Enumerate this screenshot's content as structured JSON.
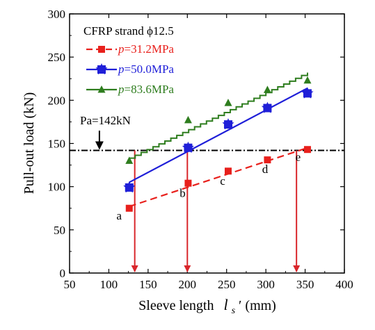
{
  "chart_data": {
    "type": "line",
    "xlabel": "Sleeve length",
    "xlabel_symbol": "l",
    "xlabel_subscript": "s",
    "xlabel_prime": "′",
    "xlabel_unit": "(mm)",
    "ylabel": "Pull-out load (kN)",
    "xlim": [
      50,
      400
    ],
    "ylim": [
      0,
      300
    ],
    "xticks": [
      50,
      100,
      150,
      200,
      250,
      300,
      350,
      400
    ],
    "yticks": [
      0,
      50,
      100,
      150,
      200,
      250,
      300
    ],
    "grid": false,
    "legend": {
      "placement": "top-left",
      "header": "CFRP strand  ϕ12.5",
      "entries": [
        {
          "symbol": "p",
          "text": "=31.2MPa",
          "color": "#e8201c"
        },
        {
          "symbol": "p",
          "text": "=50.0MPa",
          "color": "#1f1fd8"
        },
        {
          "symbol": "p",
          "text": "=83.6MPa",
          "color": "#2e7d1e"
        }
      ]
    },
    "series": [
      {
        "name": "p=31.2MPa",
        "color": "#e8201c",
        "marker": "square",
        "line_style": "dashed",
        "points": [
          [
            126,
            75
          ],
          [
            201,
            104
          ],
          [
            252,
            118
          ],
          [
            302,
            131
          ],
          [
            353,
            143
          ]
        ],
        "fit": [
          [
            126,
            77
          ],
          [
            353,
            145
          ]
        ]
      },
      {
        "name": "p=50.0MPa",
        "color": "#1f1fd8",
        "marker": "star",
        "line_style": "solid",
        "points": [
          [
            126,
            99
          ],
          [
            201,
            145
          ],
          [
            252,
            172
          ],
          [
            302,
            191
          ],
          [
            353,
            208
          ]
        ],
        "fit": [
          [
            126,
            105
          ],
          [
            353,
            214
          ]
        ]
      },
      {
        "name": "p=83.6MPa",
        "color": "#2e7d1e",
        "marker": "triangle",
        "line_style": "stepped",
        "points": [
          [
            126,
            130
          ],
          [
            201,
            177
          ],
          [
            252,
            197
          ],
          [
            302,
            212
          ],
          [
            353,
            223
          ]
        ],
        "fit": [
          [
            126,
            133
          ],
          [
            353,
            232
          ]
        ]
      }
    ],
    "reference_line": {
      "y": 142,
      "label": "Pa=142kN",
      "arrow_x": 88,
      "color": "#000000"
    },
    "vertical_arrows": {
      "color": "#d9262b",
      "x": [
        133,
        200,
        339
      ],
      "from_y": 142,
      "to_y": 0
    },
    "point_labels": [
      {
        "text": "a",
        "x": 113,
        "y": 62
      },
      {
        "text": "b",
        "x": 194,
        "y": 88
      },
      {
        "text": "c",
        "x": 245,
        "y": 102
      },
      {
        "text": "d",
        "x": 299,
        "y": 116
      },
      {
        "text": "e",
        "x": 341,
        "y": 130
      }
    ]
  }
}
